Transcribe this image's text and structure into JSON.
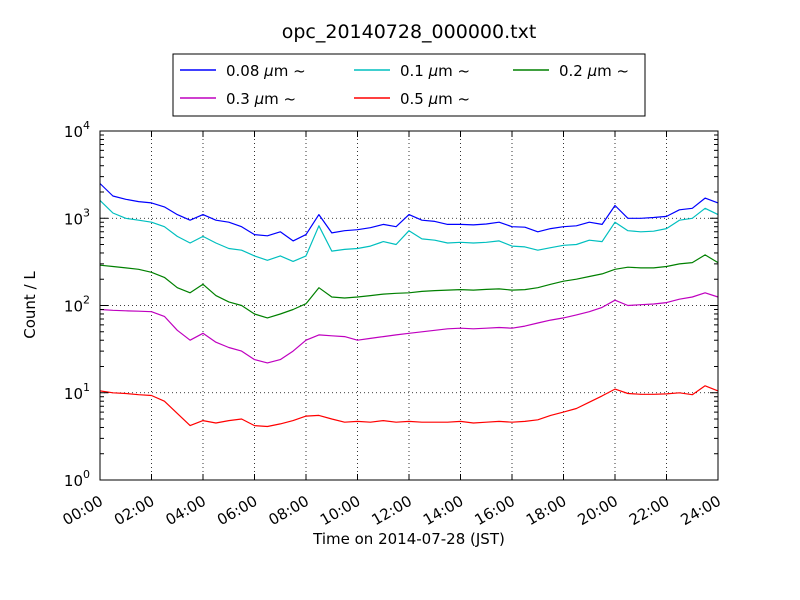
{
  "chart_data": {
    "type": "line",
    "title": "opc_20140728_000000.txt",
    "xlabel": "Time on 2014-07-28 (JST)",
    "ylabel": "Count / L",
    "yscale": "log",
    "xlim": [
      "2014-07-28 00:00",
      "2014-07-29 00:00"
    ],
    "ylim": [
      1,
      10000
    ],
    "grid": true,
    "grid_style": "dotted",
    "legend_position": "top-center, above plot",
    "legend_columns": 3,
    "x_tick_labels": [
      "00:00",
      "02:00",
      "04:00",
      "06:00",
      "08:00",
      "10:00",
      "12:00",
      "14:00",
      "16:00",
      "18:00",
      "20:00",
      "22:00",
      "24:00"
    ],
    "y_ticks": [
      {
        "value": 1,
        "base": "10",
        "exp": "0"
      },
      {
        "value": 10,
        "base": "10",
        "exp": "1"
      },
      {
        "value": 100,
        "base": "10",
        "exp": "2"
      },
      {
        "value": 1000,
        "base": "10",
        "exp": "3"
      },
      {
        "value": 10000,
        "base": "10",
        "exp": "4"
      }
    ],
    "x": [
      "00:00",
      "00:30",
      "01:00",
      "01:30",
      "02:00",
      "02:30",
      "03:00",
      "03:30",
      "04:00",
      "04:30",
      "05:00",
      "05:30",
      "06:00",
      "06:30",
      "07:00",
      "07:30",
      "08:00",
      "08:30",
      "09:00",
      "09:30",
      "10:00",
      "10:30",
      "11:00",
      "11:30",
      "12:00",
      "12:30",
      "13:00",
      "13:30",
      "14:00",
      "14:30",
      "15:00",
      "15:30",
      "16:00",
      "16:30",
      "17:00",
      "17:30",
      "18:00",
      "18:30",
      "19:00",
      "19:30",
      "20:00",
      "20:30",
      "21:00",
      "21:30",
      "22:00",
      "22:30",
      "23:00",
      "23:30",
      "24:00"
    ],
    "series": [
      {
        "name": "0.08",
        "unit": "μm",
        "suffix": "~",
        "color": "#0000ff",
        "values": [
          2500,
          1800,
          1650,
          1550,
          1500,
          1350,
          1100,
          950,
          1100,
          950,
          900,
          800,
          650,
          630,
          700,
          550,
          650,
          1100,
          680,
          720,
          740,
          780,
          850,
          800,
          1100,
          950,
          920,
          850,
          850,
          840,
          860,
          900,
          800,
          790,
          700,
          760,
          800,
          820,
          900,
          850,
          1400,
          1000,
          1000,
          1020,
          1050,
          1250,
          1300,
          1700,
          1500
        ]
      },
      {
        "name": "0.1",
        "unit": "μm",
        "suffix": "~",
        "color": "#00bfbf",
        "values": [
          1600,
          1150,
          1000,
          950,
          900,
          800,
          620,
          520,
          620,
          520,
          450,
          430,
          370,
          330,
          370,
          320,
          370,
          820,
          420,
          440,
          450,
          480,
          540,
          500,
          720,
          580,
          560,
          520,
          530,
          520,
          530,
          550,
          480,
          470,
          430,
          460,
          490,
          500,
          560,
          540,
          900,
          720,
          700,
          710,
          760,
          950,
          1000,
          1300,
          1100
        ]
      },
      {
        "name": "0.2",
        "unit": "μm",
        "suffix": "~",
        "color": "#008000",
        "values": [
          290,
          280,
          270,
          260,
          240,
          210,
          160,
          140,
          175,
          130,
          110,
          100,
          80,
          72,
          80,
          90,
          105,
          160,
          125,
          122,
          125,
          130,
          135,
          138,
          140,
          145,
          148,
          150,
          152,
          150,
          153,
          155,
          150,
          152,
          160,
          175,
          190,
          200,
          215,
          230,
          260,
          275,
          270,
          270,
          280,
          300,
          310,
          380,
          310
        ]
      },
      {
        "name": "0.3",
        "unit": "μm",
        "suffix": "~",
        "color": "#bf00bf",
        "values": [
          90,
          88,
          87,
          86,
          85,
          75,
          52,
          40,
          48,
          38,
          33,
          30,
          24,
          22,
          24,
          30,
          40,
          46,
          45,
          44,
          40,
          42,
          44,
          46,
          48,
          50,
          52,
          54,
          55,
          54,
          55,
          56,
          55,
          58,
          63,
          68,
          72,
          78,
          85,
          95,
          115,
          100,
          102,
          104,
          108,
          118,
          125,
          140,
          125
        ]
      },
      {
        "name": "0.5",
        "unit": "μm",
        "suffix": "~",
        "color": "#ff0000",
        "values": [
          10.5,
          10.0,
          9.8,
          9.5,
          9.3,
          8.0,
          5.8,
          4.2,
          4.8,
          4.5,
          4.8,
          5.0,
          4.2,
          4.1,
          4.4,
          4.8,
          5.4,
          5.5,
          5.0,
          4.6,
          4.7,
          4.6,
          4.8,
          4.6,
          4.7,
          4.6,
          4.6,
          4.6,
          4.7,
          4.5,
          4.6,
          4.7,
          4.6,
          4.7,
          4.9,
          5.5,
          6.0,
          6.6,
          7.8,
          9.2,
          11.0,
          9.8,
          9.6,
          9.6,
          9.7,
          10.0,
          9.5,
          12.0,
          10.5
        ]
      }
    ]
  }
}
